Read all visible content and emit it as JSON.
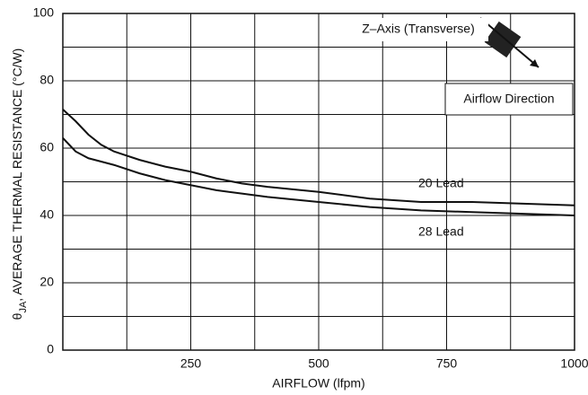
{
  "chart_data": {
    "type": "line",
    "ylabel_symbol": "θ",
    "ylabel_subscript": "JA",
    "ylabel": ", AVERAGE THERMAL RESISTANCE (°C/W)",
    "xlabel": "AIRFLOW (lfpm)",
    "xlim": [
      0,
      1000
    ],
    "ylim": [
      0,
      100
    ],
    "xticks": [
      250,
      500,
      750,
      1000
    ],
    "yticks": [
      0,
      20,
      40,
      60,
      80,
      100
    ],
    "xgrid": [
      125,
      250,
      375,
      500,
      625,
      750,
      875
    ],
    "ygrid": [
      10,
      20,
      30,
      40,
      50,
      60,
      70,
      80,
      90
    ],
    "x": [
      0,
      25,
      50,
      75,
      100,
      150,
      200,
      250,
      300,
      350,
      400,
      500,
      600,
      700,
      800,
      900,
      1000
    ],
    "series": [
      {
        "name": "20 Lead",
        "color": "#111111",
        "values": [
          71.5,
          68,
          64,
          61,
          59,
          56.5,
          54.5,
          53,
          51,
          49.5,
          48.5,
          47,
          45,
          44,
          44,
          43.5,
          43
        ]
      },
      {
        "name": "28 Lead",
        "color": "#111111",
        "values": [
          63,
          59,
          57,
          56,
          55,
          52.5,
          50.5,
          49,
          47.5,
          46.5,
          45.5,
          44,
          42.5,
          41.5,
          41,
          40.5,
          40
        ]
      }
    ],
    "annotations": [
      "Z–Axis (Transverse)",
      "Airflow Direction"
    ]
  }
}
